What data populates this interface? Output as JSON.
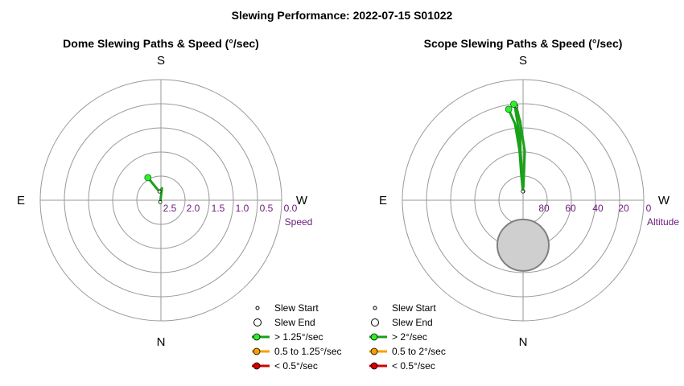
{
  "title": "Slewing Performance: 2022-07-15 S01022",
  "chart_data": [
    {
      "type": "polar",
      "subtitle": "Dome Slewing Paths & Speed (°/sec)",
      "directions": {
        "top": "S",
        "bottom": "N",
        "left": "E",
        "right": "W"
      },
      "radial_axis": {
        "label": "Speed",
        "ticks": [
          "2.5",
          "2.0",
          "1.5",
          "1.0",
          "0.5",
          "0.0"
        ],
        "range": [
          2.5,
          0.0
        ],
        "outer_value": -0.5
      },
      "colors": {
        "fast": "#1aa11a",
        "medium": "#f5a000",
        "slow": "#d40000"
      },
      "paths": [
        {
          "speed_class": "fast",
          "points": [
            [
              202,
              2.55
            ],
            [
              185,
              2.2
            ],
            [
              170,
              2.28
            ],
            [
              160,
              2.18
            ],
            [
              150,
              1.85
            ]
          ]
        }
      ],
      "starts": [
        [
          150,
          1.85
        ]
      ],
      "ends": [
        [
          202,
          2.55
        ],
        [
          170,
          2.28
        ]
      ],
      "legend": {
        "slew_start": "Slew Start",
        "slew_end": "Slew End",
        "fast": "> 1.25°/sec",
        "medium": "0.5 to 1.25°/sec",
        "slow": "< 0.5°/sec"
      }
    },
    {
      "type": "polar",
      "subtitle": "Scope Slewing Paths & Speed (°/sec)",
      "directions": {
        "top": "S",
        "bottom": "N",
        "left": "E",
        "right": "W"
      },
      "radial_axis": {
        "label": "Altitude",
        "ticks": [
          "80",
          "60",
          "40",
          "20",
          "0"
        ],
        "range": [
          90,
          0
        ],
        "outer_value": -20
      },
      "shaded_region": {
        "center_alt": 49,
        "center_az": 0,
        "radius_deg": 23.5
      },
      "colors": {
        "fast": "#1aa11a",
        "medium": "#f5a000",
        "slow": "#d40000"
      },
      "paths": [
        {
          "speed_class": "fast",
          "points": [
            [
              181,
              82
            ],
            [
              178,
              66
            ],
            [
              176,
              45
            ],
            [
              176,
              20
            ],
            [
              175,
              4
            ]
          ]
        },
        {
          "speed_class": "fast",
          "points": [
            [
              179,
              82
            ],
            [
              176,
              65
            ],
            [
              176,
              45
            ],
            [
              174,
              20
            ],
            [
              171,
              6
            ]
          ]
        },
        {
          "speed_class": "fast",
          "points": [
            [
              181.5,
              78
            ],
            [
              182,
              66
            ],
            [
              182,
              45
            ],
            [
              178,
              20
            ],
            [
              176,
              5
            ]
          ]
        },
        {
          "speed_class": "fast",
          "points": [
            [
              180.5,
              78
            ],
            [
              178,
              66
            ],
            [
              177,
              45
            ],
            [
              178,
              18
            ],
            [
              174.5,
              2
            ]
          ]
        }
      ],
      "starts": [
        [
          171,
          6
        ],
        [
          174.5,
          2
        ]
      ],
      "ends": [
        [
          181,
          82
        ],
        [
          179,
          82
        ],
        [
          176,
          4
        ]
      ],
      "legend": {
        "slew_start": "Slew Start",
        "slew_end": "Slew End",
        "fast": "> 2°/sec",
        "medium": "0.5 to 2°/sec",
        "slow": "< 0.5°/sec"
      }
    }
  ]
}
